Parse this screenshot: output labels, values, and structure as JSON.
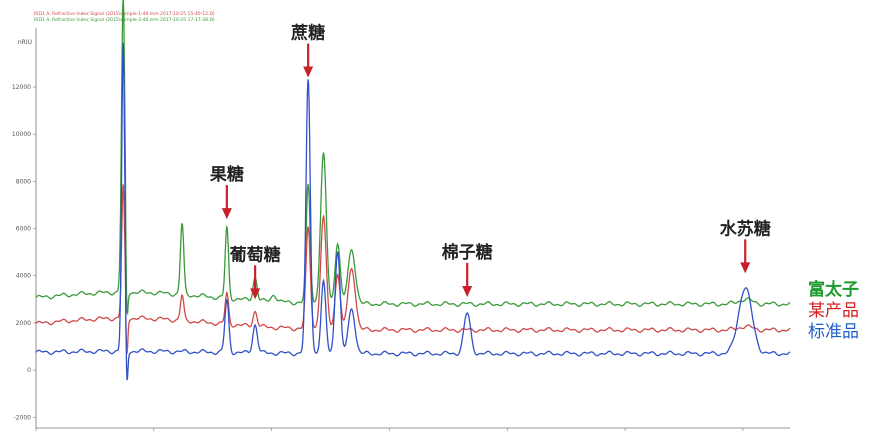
{
  "chart_data": {
    "type": "line",
    "title": "",
    "xlabel": "",
    "ylabel": "",
    "y_unit": "nRIU",
    "ylim": [
      -2200,
      14500
    ],
    "xlim": [
      0,
      32
    ],
    "yticks": [
      -2000,
      0,
      2000,
      4000,
      6000,
      8000,
      10000,
      12000
    ],
    "grid": false,
    "header_lines": [
      {
        "text": "RID1 A, Refractive Index Signal (2015\\sample-1-40.mm 2017-10-25 15-40-12.D)",
        "color": "#d04848"
      },
      {
        "text": "RID1 A, Refractive Index Signal (2015\\sample-3-40.mm 2017-10-25 17-17-38.D)",
        "color": "#3a9a3a"
      }
    ],
    "legend": {
      "position": "right",
      "entries": [
        {
          "label": "富太子",
          "color": "#1f9a2e"
        },
        {
          "label": "某产品",
          "color": "#d62020"
        },
        {
          "label": "标准品",
          "color": "#2060c8"
        }
      ]
    },
    "annotations": [
      {
        "label": "蔗糖",
        "x": 11.55,
        "y": 12400
      },
      {
        "label": "果糖",
        "x": 8.1,
        "y": 6400
      },
      {
        "label": "葡萄糖",
        "x": 9.3,
        "y": 3000
      },
      {
        "label": "棉子糖",
        "x": 18.3,
        "y": 3100
      },
      {
        "label": "水苏糖",
        "x": 30.1,
        "y": 4100
      }
    ],
    "series": [
      {
        "color": "#3a9a3a",
        "baseline": 2800,
        "drift": 500,
        "peaks": [
          {
            "x": 3.7,
            "h": 12500,
            "w": 0.1
          },
          {
            "x": 6.2,
            "h": 3000,
            "w": 0.1
          },
          {
            "x": 8.1,
            "h": 3000,
            "w": 0.1
          },
          {
            "x": 9.3,
            "h": 1000,
            "w": 0.12
          },
          {
            "x": 10.1,
            "h": 300,
            "w": 0.15
          },
          {
            "x": 11.55,
            "h": 5000,
            "w": 0.12
          },
          {
            "x": 12.2,
            "h": 6300,
            "w": 0.17
          },
          {
            "x": 12.8,
            "h": 2600,
            "w": 0.15
          },
          {
            "x": 13.4,
            "h": 2300,
            "w": 0.22
          },
          {
            "x": 30.1,
            "h": 200,
            "w": 0.4
          }
        ]
      },
      {
        "color": "#d04848",
        "baseline": 1700,
        "drift": 500,
        "peaks": [
          {
            "x": 3.7,
            "h": 5600,
            "w": 0.09
          },
          {
            "x": 6.2,
            "h": 1050,
            "w": 0.1
          },
          {
            "x": 8.1,
            "h": 1300,
            "w": 0.1
          },
          {
            "x": 9.3,
            "h": 650,
            "w": 0.12
          },
          {
            "x": 11.55,
            "h": 4300,
            "w": 0.13
          },
          {
            "x": 12.2,
            "h": 4700,
            "w": 0.17
          },
          {
            "x": 12.8,
            "h": 2400,
            "w": 0.15
          },
          {
            "x": 13.4,
            "h": 2600,
            "w": 0.22
          },
          {
            "x": 30.1,
            "h": 150,
            "w": 0.4
          }
        ]
      },
      {
        "color": "#3050c8",
        "baseline": 700,
        "drift": 100,
        "peaks": [
          {
            "x": 3.7,
            "h": 13000,
            "w": 0.09
          },
          {
            "x": 8.1,
            "h": 2200,
            "w": 0.12
          },
          {
            "x": 9.3,
            "h": 1200,
            "w": 0.14
          },
          {
            "x": 11.55,
            "h": 11600,
            "w": 0.13
          },
          {
            "x": 12.2,
            "h": 3000,
            "w": 0.14
          },
          {
            "x": 12.8,
            "h": 4400,
            "w": 0.15
          },
          {
            "x": 13.4,
            "h": 1900,
            "w": 0.2
          },
          {
            "x": 18.3,
            "h": 1700,
            "w": 0.2
          },
          {
            "x": 30.1,
            "h": 2800,
            "w": 0.4
          }
        ]
      }
    ]
  }
}
